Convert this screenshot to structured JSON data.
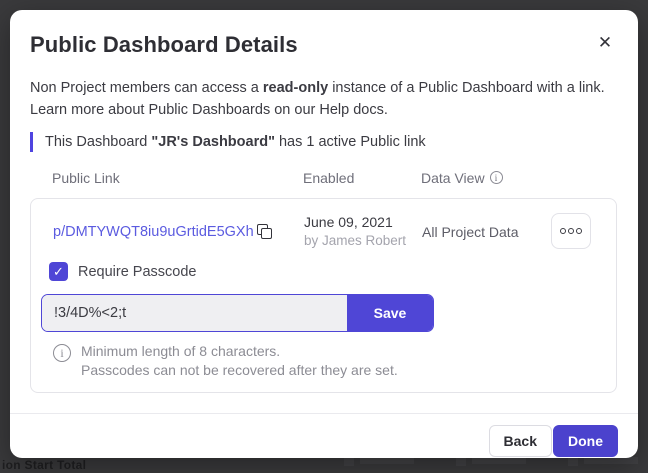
{
  "backdrop": {
    "bottom_left_text": "ion Start   Total"
  },
  "icons": {
    "close": "✕",
    "check": "✓",
    "info": "i"
  },
  "modal": {
    "title": "Public Dashboard Details",
    "description": {
      "line1_pre": "Non Project members can access a ",
      "line1_bold": "read-only",
      "line1_post": " instance of a Public Dashboard with a link.",
      "line2": "Learn more about Public Dashboards on our Help docs."
    },
    "callout": {
      "pre": "This Dashboard ",
      "bold": "\"JR's Dashboard\"",
      "post": " has 1 active Public link"
    },
    "table": {
      "headers": {
        "public_link": "Public Link",
        "enabled": "Enabled",
        "data_view": "Data View"
      }
    },
    "link_row": {
      "url": "p/DMTYWQT8iu9uGrtidE5GXh",
      "enabled_date": "June 09, 2021",
      "enabled_by": "by James Robert",
      "data_view": "All Project Data"
    },
    "passcode": {
      "checkbox_label": "Require Passcode",
      "checkbox_checked": true,
      "value": "!3/4D%<2;t",
      "save_label": "Save",
      "note_line1": "Minimum length of 8 characters.",
      "note_line2": "Passcodes can not be recovered after they are set."
    },
    "footer": {
      "back_label": "Back",
      "done_label": "Done"
    },
    "colors": {
      "accent": "#4b42cd",
      "link": "#5b5be0"
    }
  }
}
